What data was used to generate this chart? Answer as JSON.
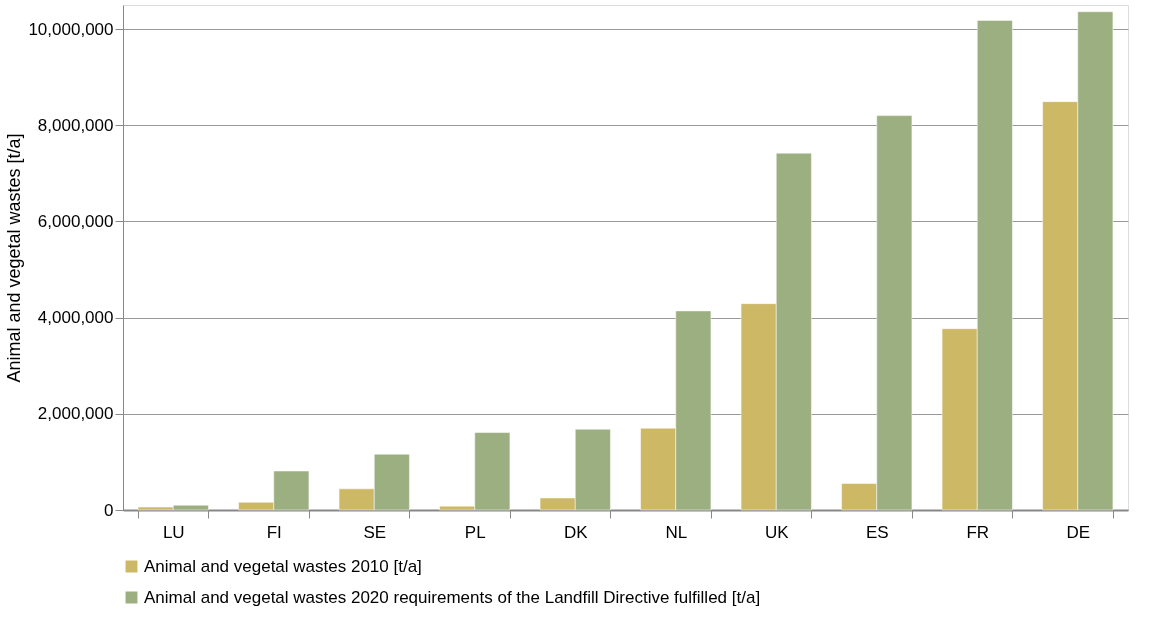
{
  "chart_data": {
    "type": "bar",
    "ylabel": "Animal and vegetal wastes [t/a]",
    "categories": [
      "LU",
      "FI",
      "SE",
      "PL",
      "DK",
      "NL",
      "UK",
      "ES",
      "FR",
      "DE"
    ],
    "series": [
      {
        "name": "Animal and vegetal wastes 2010 [t/a]",
        "color": "#cdb866",
        "values": [
          60000,
          160000,
          440000,
          80000,
          250000,
          1700000,
          4290000,
          550000,
          3770000,
          8490000
        ]
      },
      {
        "name": "Animal and vegetal wastes 2020 requirements of the Landfill Directive fulfilled [t/a]",
        "color": "#9caf81",
        "values": [
          100000,
          810000,
          1160000,
          1610000,
          1680000,
          4140000,
          7420000,
          8200000,
          10180000,
          10360000
        ]
      }
    ],
    "ylim": [
      0,
      10500000
    ],
    "yticks": [
      0,
      {
        "value": 2000000,
        "label": "2,000,000"
      },
      {
        "value": 4000000,
        "label": "4,000,000"
      },
      {
        "value": 6000000,
        "label": "6,000,000"
      },
      {
        "value": 8000000,
        "label": "8,000,000"
      },
      {
        "value": 10000000,
        "label": "10,000,000"
      }
    ],
    "grid": "y",
    "legend": "bottom"
  }
}
